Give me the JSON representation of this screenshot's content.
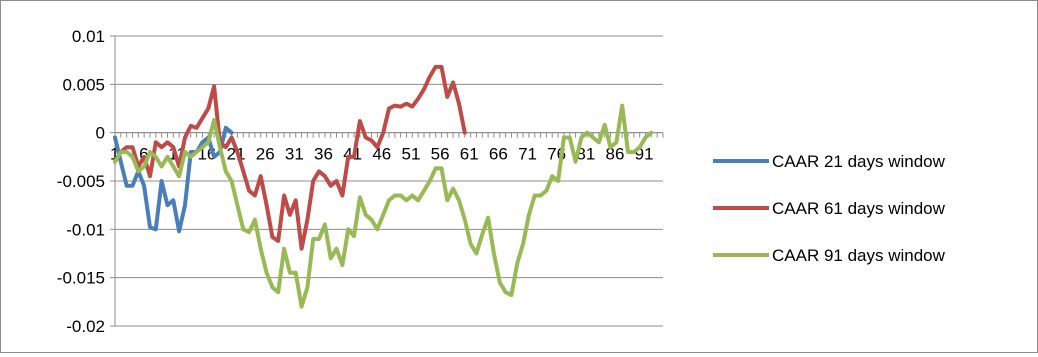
{
  "chart_data": {
    "type": "line",
    "title": "",
    "xlabel": "",
    "ylabel": "",
    "ylim": [
      -0.02,
      0.01
    ],
    "yticks": [
      0.01,
      0.005,
      0,
      -0.005,
      -0.01,
      -0.015,
      -0.02
    ],
    "ytick_labels": [
      "0.01",
      "0.005",
      "0",
      "-0.005",
      "-0.01",
      "-0.015",
      "-0.02"
    ],
    "x_range": [
      1,
      95
    ],
    "xtick_labels": [
      "1",
      "6",
      "11",
      "16",
      "21",
      "26",
      "31",
      "36",
      "41",
      "46",
      "51",
      "56",
      "61",
      "66",
      "71",
      "76",
      "81",
      "86",
      "91"
    ],
    "grid": "horizontal",
    "legend_position": "right",
    "series": [
      {
        "name": "CAAR 21 days window",
        "color": "#4a7ebb",
        "values": [
          -0.0005,
          -0.003,
          -0.0055,
          -0.0055,
          -0.004,
          -0.0055,
          -0.0098,
          -0.01,
          -0.005,
          -0.0075,
          -0.007,
          -0.0102,
          -0.0075,
          -0.002,
          -0.002,
          -0.001,
          -0.0005,
          -0.0025,
          -0.002,
          0.0005,
          0
        ]
      },
      {
        "name": "CAAR 61 days window",
        "color": "#be4b48",
        "values": [
          -0.003,
          -0.002,
          -0.0015,
          -0.0015,
          -0.0035,
          -0.0025,
          -0.0045,
          -0.001,
          -0.0015,
          -0.001,
          -0.0015,
          -0.0035,
          -0.0005,
          0.0007,
          0.0005,
          0.0015,
          0.0025,
          0.0048,
          -0.001,
          -0.0015,
          -0.0005,
          -0.002,
          -0.004,
          -0.006,
          -0.0065,
          -0.0045,
          -0.0075,
          -0.0108,
          -0.0112,
          -0.0065,
          -0.0085,
          -0.007,
          -0.012,
          -0.009,
          -0.005,
          -0.004,
          -0.0045,
          -0.0055,
          -0.005,
          -0.0065,
          -0.0025,
          -0.0025,
          0.0012,
          -0.0005,
          -0.0008,
          -0.0015,
          0,
          0.0025,
          0.0028,
          0.0027,
          0.003,
          0.0027,
          0.0035,
          0.0045,
          0.0058,
          0.0068,
          0.0068,
          0.0037,
          0.0052,
          0.003,
          0
        ]
      },
      {
        "name": "CAAR 91 days window",
        "color": "#98b954",
        "values": [
          -0.003,
          -0.002,
          -0.002,
          -0.0025,
          -0.004,
          -0.0035,
          -0.002,
          -0.0025,
          -0.0035,
          -0.0025,
          -0.0035,
          -0.0045,
          -0.002,
          -0.0025,
          -0.002,
          -0.0015,
          -0.001,
          0.0013,
          -0.0015,
          -0.004,
          -0.005,
          -0.0075,
          -0.01,
          -0.0103,
          -0.009,
          -0.012,
          -0.0145,
          -0.016,
          -0.0165,
          -0.012,
          -0.0145,
          -0.0145,
          -0.018,
          -0.016,
          -0.011,
          -0.011,
          -0.0095,
          -0.013,
          -0.012,
          -0.0137,
          -0.01,
          -0.0107,
          -0.0067,
          -0.0085,
          -0.009,
          -0.01,
          -0.0085,
          -0.007,
          -0.0065,
          -0.0065,
          -0.007,
          -0.0065,
          -0.007,
          -0.006,
          -0.005,
          -0.0037,
          -0.0037,
          -0.007,
          -0.0058,
          -0.007,
          -0.009,
          -0.0115,
          -0.0125,
          -0.0105,
          -0.0088,
          -0.0125,
          -0.0155,
          -0.0165,
          -0.0168,
          -0.0135,
          -0.0115,
          -0.0085,
          -0.0065,
          -0.0065,
          -0.006,
          -0.0045,
          -0.005,
          -0.0005,
          -0.0005,
          -0.003,
          -0.0005,
          0,
          -0.0005,
          -0.001,
          0.0008,
          -0.0015,
          -0.001,
          0.0028,
          -0.002,
          -0.002,
          -0.0015,
          -0.0005,
          0
        ]
      }
    ]
  }
}
